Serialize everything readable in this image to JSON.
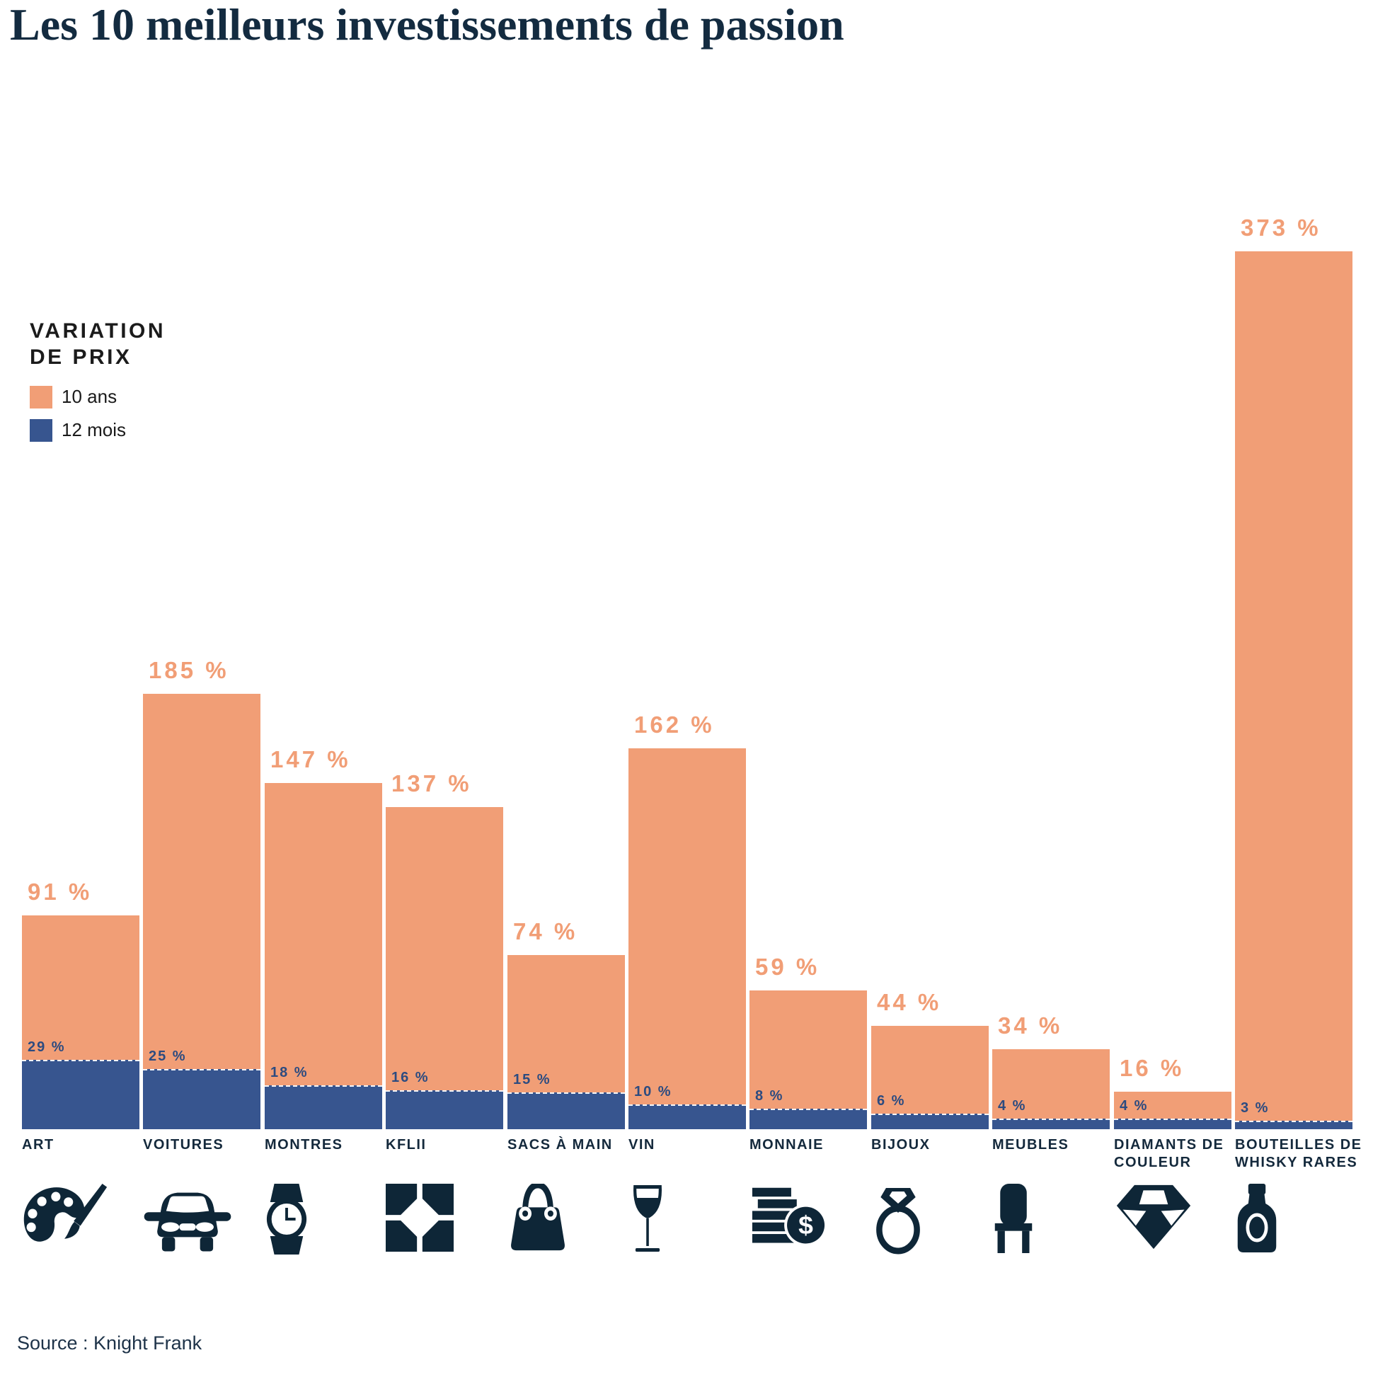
{
  "title": "Les 10 meilleurs investissements de passion",
  "legend": {
    "title_line1": "VARIATION",
    "title_line2": "DE PRIX",
    "items": [
      {
        "label": "10 ans",
        "color": "#F19E76"
      },
      {
        "label": "12 mois",
        "color": "#37558F"
      }
    ]
  },
  "source": "Source : Knight Frank",
  "colors": {
    "orange": "#F19E76",
    "blue": "#37558F",
    "navy_icon": "#0E2637",
    "category_text": "#14293C",
    "value_label_10": "#F19E76",
    "value_label_12": "#2C4B80",
    "title_text": "#132B40"
  },
  "chart_data": {
    "type": "bar",
    "unit": "%",
    "ylim": [
      0,
      373
    ],
    "grid": false,
    "legend_position": "upper-left",
    "categories": [
      "ART",
      "VOITURES",
      "MONTRES",
      "KFLII",
      "SACS À MAIN",
      "VIN",
      "MONNAIE",
      "BIJOUX",
      "MEUBLES",
      "DIAMANTS DE COULEUR",
      "BOUTEILLES DE WHISKY RARES"
    ],
    "icons": [
      "palette-icon",
      "car-icon",
      "watch-icon",
      "kflii-icon",
      "handbag-icon",
      "wine-glass-icon",
      "coins-icon",
      "ring-icon",
      "chair-icon",
      "diamond-icon",
      "whisky-bottle-icon"
    ],
    "series": [
      {
        "name": "10 ans",
        "color": "#F19E76",
        "values": [
          91,
          185,
          147,
          137,
          74,
          162,
          59,
          44,
          34,
          16,
          373
        ],
        "labels": [
          "91 %",
          "185 %",
          "147 %",
          "137 %",
          "74 %",
          "162 %",
          "59 %",
          "44 %",
          "34 %",
          "16 %",
          "373 %"
        ]
      },
      {
        "name": "12 mois",
        "color": "#37558F",
        "values": [
          29,
          25,
          18,
          16,
          15,
          10,
          8,
          6,
          4,
          4,
          3
        ],
        "labels": [
          "29 %",
          "25 %",
          "18 %",
          "16 %",
          "15 %",
          "10 %",
          "8 %",
          "6 %",
          "4 %",
          "4 %",
          "3 %"
        ]
      }
    ]
  }
}
